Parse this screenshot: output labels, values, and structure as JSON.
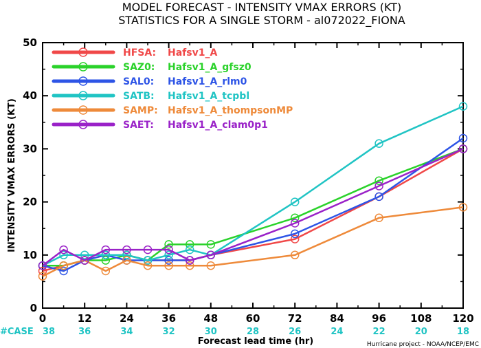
{
  "chart_data": {
    "type": "line",
    "title": "MODEL FORECAST - INTENSITY VMAX ERRORS (KT)",
    "subtitle": "STATISTICS FOR A SINGLE STORM - al072022_FIONA",
    "xlabel": "Forecast lead time (hr)",
    "ylabel": "INTENSITY VMAX ERRORS  (KT)",
    "xlim": [
      0,
      120
    ],
    "ylim": [
      0,
      50
    ],
    "xticks": [
      "0",
      "12",
      "24",
      "36",
      "48",
      "60",
      "72",
      "84",
      "96",
      "108",
      "120"
    ],
    "yticks": [
      "0",
      "10",
      "20",
      "30",
      "40",
      "50"
    ],
    "case_label": "#CASE",
    "case_counts": [
      "38",
      "36",
      "34",
      "32",
      "30",
      "28",
      "26",
      "24",
      "22",
      "20",
      "18"
    ],
    "credit": "Hurricane project - NOAA/NCEP/EMC",
    "legend_position": "top-left",
    "series": [
      {
        "name": "HFSA:",
        "desc": "Hafsv1_A",
        "color": "#f04848",
        "x": [
          0,
          6,
          12,
          18,
          24,
          30,
          36,
          42,
          48,
          72,
          96,
          120
        ],
        "y": [
          7,
          8,
          9,
          10,
          10,
          9,
          9,
          9,
          10,
          13,
          21,
          30
        ]
      },
      {
        "name": "SAZ0:",
        "desc": "Hafsv1_A_gfsz0",
        "color": "#2ad22a",
        "x": [
          0,
          6,
          12,
          18,
          24,
          30,
          36,
          42,
          48,
          72,
          96,
          120
        ],
        "y": [
          8,
          8,
          9,
          9,
          10,
          9,
          12,
          12,
          12,
          17,
          24,
          30
        ]
      },
      {
        "name": "SAL0:",
        "desc": "Hafsv1_A_rlm0",
        "color": "#2d54e6",
        "x": [
          0,
          6,
          12,
          18,
          24,
          30,
          36,
          42,
          48,
          72,
          96,
          120
        ],
        "y": [
          8,
          7,
          9,
          10,
          9,
          9,
          9,
          9,
          10,
          14,
          21,
          32
        ]
      },
      {
        "name": "SATB:",
        "desc": "Hafsv1_A_tcpbl",
        "color": "#20c4c4",
        "x": [
          0,
          6,
          12,
          18,
          24,
          30,
          36,
          42,
          48,
          72,
          96,
          120
        ],
        "y": [
          8,
          10,
          10,
          10,
          10,
          9,
          10,
          11,
          10,
          20,
          31,
          38
        ]
      },
      {
        "name": "SAMP:",
        "desc": "Hafsv1_A_thompsonMP",
        "color": "#ee8a3a",
        "x": [
          0,
          6,
          12,
          18,
          24,
          30,
          36,
          42,
          48,
          72,
          96,
          120
        ],
        "y": [
          6,
          8,
          9,
          7,
          9,
          8,
          8,
          8,
          8,
          10,
          17,
          19
        ]
      },
      {
        "name": "SAET:",
        "desc": "Hafsv1_A_clam0p1",
        "color": "#9a22c8",
        "x": [
          0,
          6,
          12,
          18,
          24,
          30,
          36,
          42,
          48,
          72,
          96,
          120
        ],
        "y": [
          8,
          11,
          9,
          11,
          11,
          11,
          11,
          9,
          10,
          16,
          23,
          30
        ]
      }
    ],
    "case_color": "#20c4c4"
  }
}
